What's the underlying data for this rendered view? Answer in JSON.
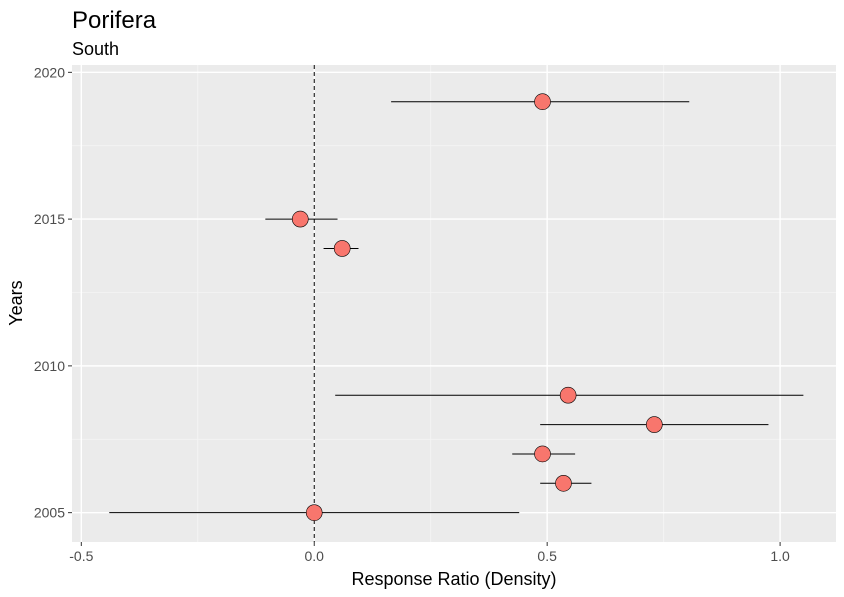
{
  "chart_data": {
    "type": "scatter",
    "title": "Porifera",
    "subtitle": "South",
    "xlabel": "Response Ratio (Density)",
    "ylabel": "Years",
    "xlim": [
      -0.52,
      1.12
    ],
    "ylim": [
      2004.0,
      2020.25
    ],
    "x_ticks": [
      -0.5,
      0.0,
      0.5,
      1.0
    ],
    "x_tick_labels": [
      "-0.5",
      "0.0",
      "0.5",
      "1.0"
    ],
    "y_ticks": [
      2005,
      2010,
      2015,
      2020
    ],
    "y_tick_labels": [
      "2005",
      "2010",
      "2015",
      "2020"
    ],
    "reference_line_x": 0,
    "grid": true,
    "point_color": "#f8766d",
    "points": [
      {
        "year": 2019,
        "estimate": 0.49,
        "ci_low": 0.165,
        "ci_high": 0.805
      },
      {
        "year": 2015,
        "estimate": -0.03,
        "ci_low": -0.105,
        "ci_high": 0.05
      },
      {
        "year": 2014,
        "estimate": 0.06,
        "ci_low": 0.02,
        "ci_high": 0.095
      },
      {
        "year": 2009,
        "estimate": 0.545,
        "ci_low": 0.045,
        "ci_high": 1.05
      },
      {
        "year": 2008,
        "estimate": 0.73,
        "ci_low": 0.485,
        "ci_high": 0.975
      },
      {
        "year": 2007,
        "estimate": 0.49,
        "ci_low": 0.425,
        "ci_high": 0.56
      },
      {
        "year": 2006,
        "estimate": 0.535,
        "ci_low": 0.485,
        "ci_high": 0.595
      },
      {
        "year": 2005,
        "estimate": 0.0,
        "ci_low": -0.44,
        "ci_high": 0.44
      }
    ]
  }
}
